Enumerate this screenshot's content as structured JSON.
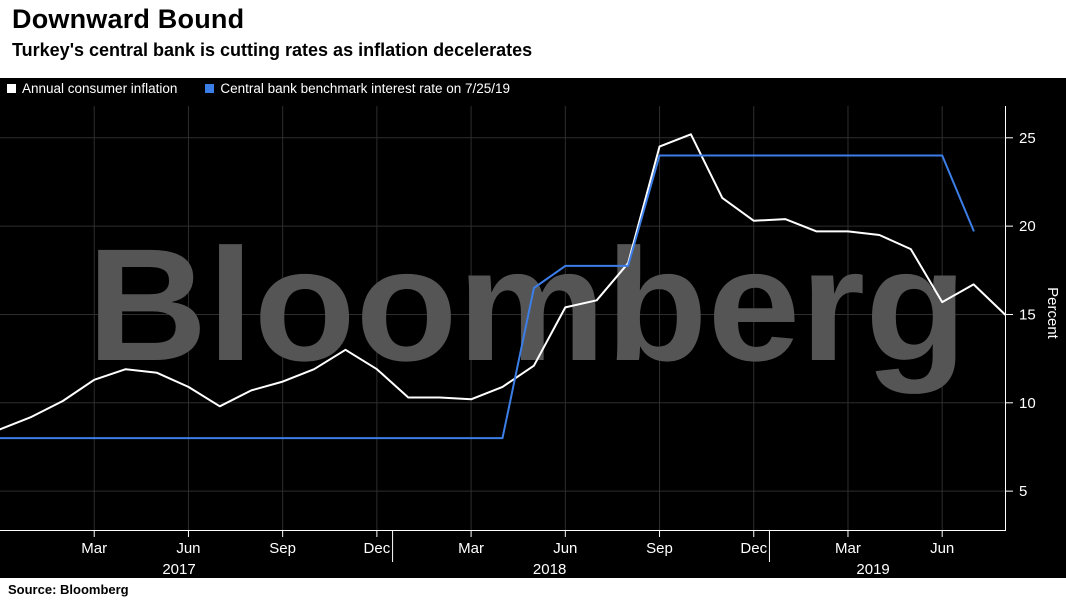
{
  "header": {
    "title": "Downward Bound",
    "subtitle": "Turkey's central bank is cutting rates as inflation decelerates"
  },
  "watermark": "Bloomberg",
  "source": "Source: Bloomberg",
  "colors": {
    "background": "#000000",
    "header_bg": "#ffffff",
    "grid": "#2e2e2e",
    "axis": "#ffffff",
    "watermark": "#555555",
    "inflation_line": "#ffffff",
    "rate_line": "#3c7ee8"
  },
  "chart_data": {
    "type": "line",
    "title": "Downward Bound",
    "subtitle": "Turkey's central bank is cutting rates as inflation decelerates",
    "ylabel": "Percent",
    "ylim": [
      2.8,
      26.8
    ],
    "yticks": [
      5,
      10,
      15,
      20,
      25
    ],
    "x_unit": "months, index 0 = Dec 2016",
    "x_range": [
      0,
      32
    ],
    "x_tick_labels": [
      {
        "i": 3,
        "label": "Mar"
      },
      {
        "i": 6,
        "label": "Jun"
      },
      {
        "i": 9,
        "label": "Sep"
      },
      {
        "i": 12,
        "label": "Dec"
      },
      {
        "i": 15,
        "label": "Mar"
      },
      {
        "i": 18,
        "label": "Jun"
      },
      {
        "i": 21,
        "label": "Sep"
      },
      {
        "i": 24,
        "label": "Dec"
      },
      {
        "i": 27,
        "label": "Mar"
      },
      {
        "i": 30,
        "label": "Jun"
      }
    ],
    "year_separators": [
      12.5,
      24.5
    ],
    "year_labels": [
      {
        "i": 5.7,
        "label": "2017"
      },
      {
        "i": 17.5,
        "label": "2018"
      },
      {
        "i": 27.8,
        "label": "2019"
      }
    ],
    "grid": true,
    "legend_position": "top-left",
    "series": [
      {
        "name": "Annual consumer inflation",
        "color": "#ffffff",
        "start_index": 0,
        "values": [
          8.5,
          9.2,
          10.1,
          11.3,
          11.9,
          11.7,
          10.9,
          9.8,
          10.7,
          11.2,
          11.9,
          13.0,
          11.9,
          10.3,
          10.3,
          10.2,
          10.9,
          12.1,
          15.4,
          15.8,
          17.9,
          24.5,
          25.2,
          21.6,
          20.3,
          20.4,
          19.7,
          19.7,
          19.5,
          18.7,
          15.7,
          16.7,
          15.0
        ]
      },
      {
        "name": "Central bank benchmark interest rate on 7/25/19",
        "color": "#3c7ee8",
        "start_index": 0,
        "values": [
          8,
          8,
          8,
          8,
          8,
          8,
          8,
          8,
          8,
          8,
          8,
          8,
          8,
          8,
          8,
          8,
          8,
          16.5,
          17.75,
          17.75,
          17.75,
          24,
          24,
          24,
          24,
          24,
          24,
          24,
          24,
          24,
          24,
          19.75
        ]
      }
    ]
  }
}
